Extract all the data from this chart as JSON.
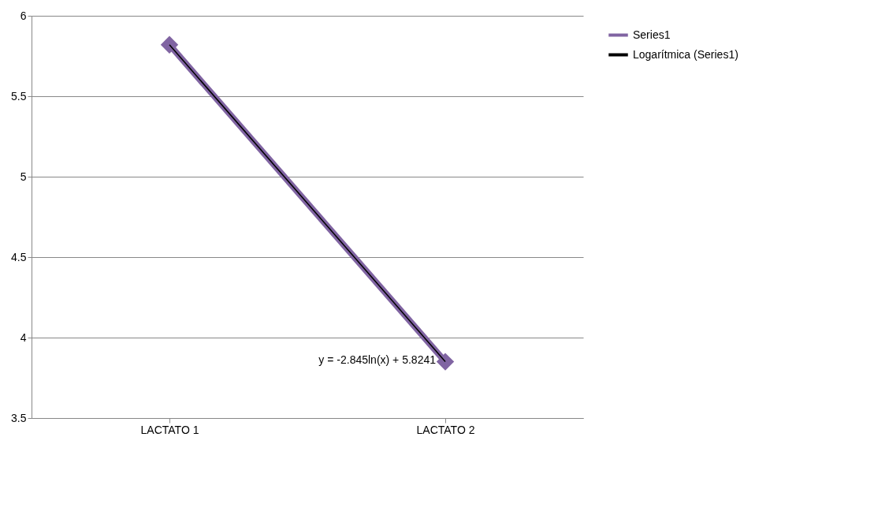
{
  "chart_data": {
    "type": "line",
    "categories": [
      "LACTATO 1",
      "LACTATO 2"
    ],
    "series": [
      {
        "name": "Series1",
        "color": "#8064a2",
        "values": [
          5.82,
          3.85
        ],
        "marker": "diamond"
      },
      {
        "name": "Logarítmica (Series1)",
        "type": "line",
        "color": "#000000",
        "values": [
          5.82,
          3.85
        ],
        "marker": "none"
      }
    ],
    "ylim": [
      3.5,
      6
    ],
    "yticks": [
      3.5,
      4,
      4.5,
      5,
      5.5,
      6
    ],
    "grid": "y",
    "legend": "right",
    "line_style": "solid",
    "annotations": [
      "y = -2.845ln(x) + 5.8241"
    ]
  }
}
